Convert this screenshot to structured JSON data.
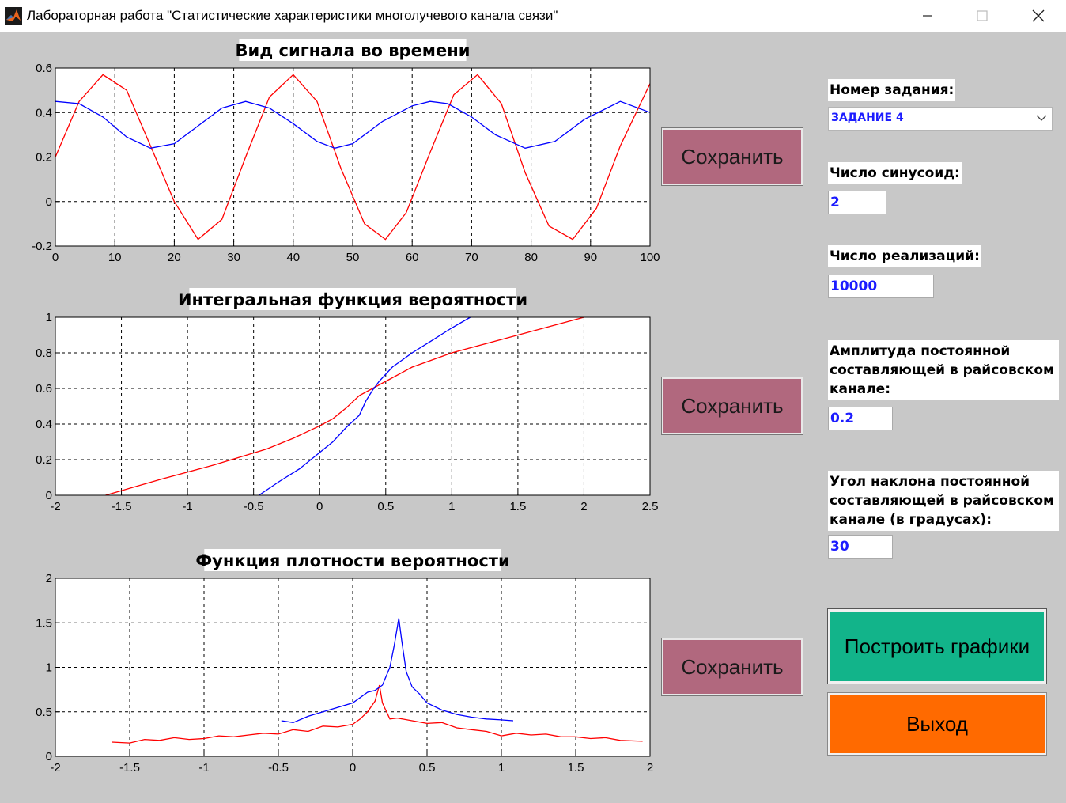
{
  "window": {
    "title": "Лабораторная работа \"Статистические характеристики многолучевого канала связи\""
  },
  "plots": [
    {
      "title": "Вид сигнала во времени",
      "xlim": [
        0,
        100
      ],
      "ylim": [
        -0.2,
        0.6
      ],
      "xticks": [
        "0",
        "10",
        "20",
        "30",
        "40",
        "50",
        "60",
        "70",
        "80",
        "90",
        "100"
      ],
      "yticks": [
        "-0.2",
        "0",
        "0.2",
        "0.4",
        "0.6"
      ],
      "save_label": "Сохранить"
    },
    {
      "title": "Интегральная функция вероятности",
      "xlim": [
        -2,
        2.5
      ],
      "ylim": [
        0,
        1
      ],
      "xticks": [
        "-2",
        "-1.5",
        "-1",
        "-0.5",
        "0",
        "0.5",
        "1",
        "1.5",
        "2",
        "2.5"
      ],
      "yticks": [
        "0",
        "0.2",
        "0.4",
        "0.6",
        "0.8",
        "1"
      ],
      "save_label": "Сохранить"
    },
    {
      "title": "Функция плотности вероятности",
      "xlim": [
        -2,
        2
      ],
      "ylim": [
        0,
        2
      ],
      "xticks": [
        "-2",
        "-1.5",
        "-1",
        "-0.5",
        "0",
        "0.5",
        "1",
        "1.5",
        "2"
      ],
      "yticks": [
        "0",
        "0.5",
        "1",
        "1.5",
        "2"
      ],
      "save_label": "Сохранить"
    }
  ],
  "chart_data": [
    {
      "type": "line",
      "title": "Вид сигнала во времени",
      "xlabel": "",
      "ylabel": "",
      "xlim": [
        0,
        100
      ],
      "ylim": [
        -0.2,
        0.6
      ],
      "grid": true,
      "series": [
        {
          "color": "#ff0000",
          "x": [
            0,
            4,
            8,
            12,
            16,
            20,
            24,
            28,
            32,
            36,
            40,
            44,
            48,
            52,
            55.5,
            59,
            63,
            67,
            71,
            75,
            79,
            83,
            87,
            91,
            95,
            100
          ],
          "y": [
            0.2,
            0.45,
            0.57,
            0.5,
            0.25,
            0.0,
            -0.17,
            -0.08,
            0.2,
            0.47,
            0.57,
            0.45,
            0.15,
            -0.1,
            -0.17,
            -0.05,
            0.22,
            0.48,
            0.57,
            0.44,
            0.13,
            -0.11,
            -0.17,
            -0.03,
            0.25,
            0.53
          ]
        },
        {
          "color": "#0000ff",
          "x": [
            0,
            4,
            8,
            12,
            16,
            20,
            24,
            28,
            32,
            36,
            40,
            44,
            47,
            50,
            55,
            60,
            63,
            66,
            70,
            74,
            79,
            84,
            89,
            95,
            100
          ],
          "y": [
            0.45,
            0.44,
            0.38,
            0.29,
            0.24,
            0.26,
            0.34,
            0.42,
            0.45,
            0.42,
            0.35,
            0.27,
            0.24,
            0.26,
            0.36,
            0.43,
            0.45,
            0.44,
            0.38,
            0.3,
            0.24,
            0.27,
            0.37,
            0.45,
            0.4
          ]
        }
      ]
    },
    {
      "type": "line",
      "title": "Интегральная функция вероятности",
      "xlabel": "",
      "ylabel": "",
      "xlim": [
        -2,
        2.5
      ],
      "ylim": [
        0,
        1
      ],
      "grid": true,
      "series": [
        {
          "color": "#ff0000",
          "x": [
            -1.62,
            -1.2,
            -0.8,
            -0.4,
            -0.2,
            0,
            0.1,
            0.2,
            0.3,
            0.4,
            0.5,
            0.7,
            1,
            1.4,
            1.7,
            2
          ],
          "y": [
            0,
            0.09,
            0.17,
            0.26,
            0.32,
            0.39,
            0.43,
            0.49,
            0.56,
            0.6,
            0.64,
            0.72,
            0.8,
            0.88,
            0.94,
            1
          ]
        },
        {
          "color": "#0000ff",
          "x": [
            -0.46,
            -0.3,
            -0.15,
            0,
            0.1,
            0.2,
            0.3,
            0.35,
            0.4,
            0.45,
            0.55,
            0.7,
            0.85,
            1,
            1.14
          ],
          "y": [
            0,
            0.08,
            0.15,
            0.24,
            0.3,
            0.38,
            0.45,
            0.53,
            0.59,
            0.64,
            0.72,
            0.8,
            0.87,
            0.94,
            1
          ]
        }
      ]
    },
    {
      "type": "line",
      "title": "Функция плотности вероятности",
      "xlabel": "",
      "ylabel": "",
      "xlim": [
        -2,
        2
      ],
      "ylim": [
        0,
        2
      ],
      "grid": true,
      "series": [
        {
          "color": "#ff0000",
          "x": [
            -1.62,
            -1.5,
            -1.4,
            -1.3,
            -1.2,
            -1.1,
            -1,
            -0.9,
            -0.8,
            -0.7,
            -0.6,
            -0.5,
            -0.4,
            -0.3,
            -0.2,
            -0.1,
            0,
            0.05,
            0.1,
            0.15,
            0.18,
            0.2,
            0.25,
            0.3,
            0.4,
            0.5,
            0.6,
            0.7,
            0.8,
            0.9,
            1,
            1.1,
            1.2,
            1.3,
            1.4,
            1.5,
            1.6,
            1.7,
            1.8,
            1.95
          ],
          "y": [
            0.16,
            0.15,
            0.19,
            0.18,
            0.21,
            0.19,
            0.2,
            0.23,
            0.22,
            0.24,
            0.26,
            0.25,
            0.3,
            0.28,
            0.34,
            0.33,
            0.36,
            0.42,
            0.5,
            0.62,
            0.8,
            0.6,
            0.42,
            0.43,
            0.4,
            0.37,
            0.38,
            0.32,
            0.3,
            0.28,
            0.23,
            0.26,
            0.24,
            0.25,
            0.22,
            0.22,
            0.2,
            0.21,
            0.18,
            0.17
          ]
        },
        {
          "color": "#0000ff",
          "x": [
            -0.48,
            -0.4,
            -0.3,
            -0.2,
            -0.1,
            0,
            0.05,
            0.1,
            0.15,
            0.2,
            0.25,
            0.28,
            0.31,
            0.33,
            0.36,
            0.4,
            0.45,
            0.5,
            0.6,
            0.7,
            0.8,
            0.9,
            1,
            1.08
          ],
          "y": [
            0.4,
            0.38,
            0.45,
            0.5,
            0.55,
            0.6,
            0.66,
            0.72,
            0.74,
            0.8,
            1.0,
            1.25,
            1.55,
            1.3,
            0.95,
            0.78,
            0.7,
            0.6,
            0.52,
            0.47,
            0.44,
            0.42,
            0.41,
            0.4
          ]
        }
      ]
    }
  ],
  "panel": {
    "task_label": "Номер задания:",
    "task_value": "ЗАДАНИЕ 4",
    "sines_label": "Число синусоид:",
    "sines_value": "2",
    "realizations_label": "Число реализаций:",
    "realizations_value": "10000",
    "amp_label": "Амплитуда постоянной составляющей в райсовском канале:",
    "amp_value": "0.2",
    "angle_label": "Угол наклона постоянной составляющей в райсовском канале (в градусах):",
    "angle_value": "30",
    "build_label": "Построить графики",
    "exit_label": "Выход",
    "build_color": "#12b48a",
    "exit_color": "#ff6a00"
  }
}
